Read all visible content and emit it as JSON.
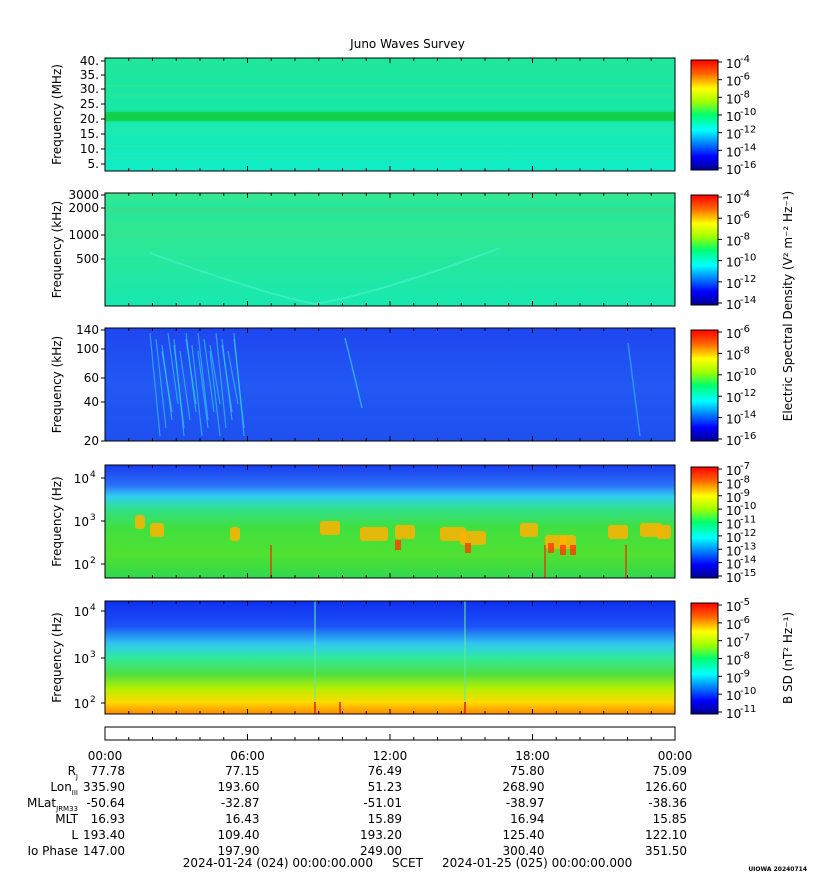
{
  "title": "Juno Waves Survey",
  "panels": [
    {
      "id": "hfwbr",
      "ylabel": "Frequency (MHz)",
      "yticks": [
        "40.",
        "35.",
        "30.",
        "25.",
        "20.",
        "15.",
        "10.",
        "5."
      ],
      "cbar_ticks": [
        "-4",
        "-6",
        "-8",
        "-10",
        "-12",
        "-14",
        "-16"
      ],
      "colorscale": "jet",
      "dominant_color": "#19e6a0",
      "feature": "bright green horizontal band near 21 MHz"
    },
    {
      "id": "hf",
      "ylabel": "Frequency (kHz)",
      "yticks": [
        "3000",
        "2000",
        "1000",
        "500"
      ],
      "cbar_ticks": [
        "-4",
        "-6",
        "-8",
        "-10",
        "-12",
        "-14"
      ],
      "colorscale": "jet",
      "dominant_color": "#1cefa0",
      "feature": "faint V-shaped emission centred near 09:00"
    },
    {
      "id": "lfr",
      "ylabel": "Frequency (kHz)",
      "yticks": [
        "140",
        "100",
        "60",
        "40",
        "20"
      ],
      "cbar_ticks": [
        "-6",
        "-8",
        "-10",
        "-12",
        "-14",
        "-16"
      ],
      "colorscale": "jet",
      "dominant_color": "#1f4ff0",
      "feature": "cyan drifting striations between 03:00 and 06:00"
    },
    {
      "id": "e-lf",
      "ylabel": "Frequency (Hz)",
      "yticks": [
        {
          "base": "10",
          "exp": "4"
        },
        {
          "base": "10",
          "exp": "3"
        },
        {
          "base": "10",
          "exp": "2"
        }
      ],
      "cbar_ticks": [
        "-7",
        "-8",
        "-9",
        "-10",
        "-11",
        "-12",
        "-13",
        "-14",
        "-15"
      ],
      "colorscale": "jet",
      "dominant_color": "#28e030",
      "feature": "orange/red bursts 300–800 Hz; blue above ~3 kHz"
    },
    {
      "id": "b-lf",
      "ylabel": "Frequency (Hz)",
      "yticks": [
        {
          "base": "10",
          "exp": "4"
        },
        {
          "base": "10",
          "exp": "3"
        },
        {
          "base": "10",
          "exp": "2"
        }
      ],
      "cbar_ticks": [
        "-5",
        "-6",
        "-7",
        "-8",
        "-9",
        "-10",
        "-11"
      ],
      "colorscale": "jet",
      "dominant_color": "#40e080",
      "feature": "vertical gradient orange at bottom to blue at top"
    }
  ],
  "colorbar_labels": {
    "electric": "Electric Spectral Density (V² m⁻² Hz⁻¹)",
    "magnetic": "B SD (nT² Hz⁻¹)",
    "tick_base": "10"
  },
  "time_ticks": [
    "00:00",
    "06:00",
    "12:00",
    "18:00",
    "00:00"
  ],
  "ephemeris": {
    "labels": [
      "R",
      "Lon",
      "MLat",
      "MLT",
      "L",
      "Io Phase"
    ],
    "label_subs": [
      "J",
      "III",
      "JRM33",
      "",
      "",
      ""
    ],
    "rows": [
      [
        "77.78",
        "77.15",
        "76.49",
        "75.80",
        "75.09"
      ],
      [
        "335.90",
        "193.60",
        "51.23",
        "268.90",
        "126.60"
      ],
      [
        "-50.64",
        "-32.87",
        "-51.01",
        "-38.97",
        "-38.36"
      ],
      [
        "16.93",
        "16.43",
        "15.89",
        "16.94",
        "15.85"
      ],
      [
        "193.40",
        "109.40",
        "193.20",
        "125.40",
        "122.10"
      ],
      [
        "147.00",
        "197.90",
        "249.00",
        "300.40",
        "351.50"
      ]
    ]
  },
  "footer": {
    "start": "2024-01-24 (024) 00:00:00.000",
    "scet": "SCET",
    "end": "2024-01-25 (025) 00:00:00.000"
  },
  "stamp": "UIOWA 20240714",
  "chart_data": {
    "type": "heatmap",
    "title": "Juno Waves Survey",
    "x_range": [
      "2024-01-24 00:00",
      "2024-01-25 00:00"
    ],
    "x_ticks": [
      "00:00",
      "06:00",
      "12:00",
      "18:00",
      "00:00"
    ],
    "subplots": [
      {
        "ylabel": "Frequency (MHz)",
        "ylim": [
          3.5,
          41
        ],
        "scale": "linear",
        "cbar_exp_range": [
          -16,
          -4
        ]
      },
      {
        "ylabel": "Frequency (kHz)",
        "ylim": [
          140,
          3000
        ],
        "scale": "log",
        "cbar_exp_range": [
          -15,
          -4
        ]
      },
      {
        "ylabel": "Frequency (kHz)",
        "ylim": [
          20,
          140
        ],
        "scale": "log",
        "cbar_exp_range": [
          -16,
          -6
        ]
      },
      {
        "ylabel": "Frequency (Hz)",
        "ylim": [
          50,
          20000
        ],
        "scale": "log",
        "cbar_exp_range": [
          -15,
          -7
        ]
      },
      {
        "ylabel": "Frequency (Hz)",
        "ylim": [
          50,
          20000
        ],
        "scale": "log",
        "cbar_exp_range": [
          -11,
          -5
        ]
      }
    ],
    "colorbar_units": [
      "V² m⁻² Hz⁻¹",
      "nT² Hz⁻¹"
    ]
  }
}
